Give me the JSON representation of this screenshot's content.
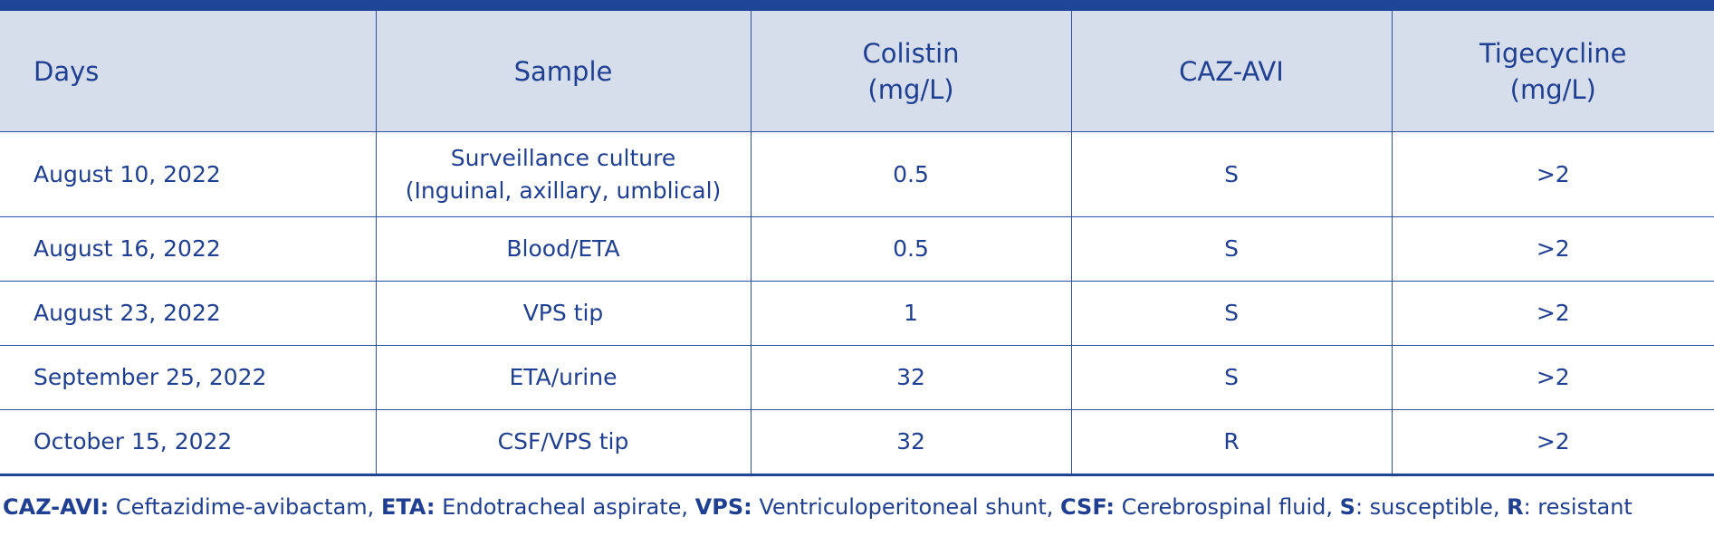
{
  "table": {
    "headers": [
      "Days",
      "Sample",
      [
        "Colistin",
        "(mg/L)"
      ],
      "CAZ-AVI",
      [
        "Tigecycline",
        "(mg/L)"
      ]
    ],
    "rows": [
      [
        "August 10, 2022",
        [
          "Surveillance culture",
          "(Inguinal, axillary, umblical)"
        ],
        "0.5",
        "S",
        ">2"
      ],
      [
        "August 16, 2022",
        "Blood/ETA",
        "0.5",
        "S",
        ">2"
      ],
      [
        "August 23, 2022",
        "VPS tip",
        "1",
        "S",
        ">2"
      ],
      [
        "September 25, 2022",
        "ETA/urine",
        "32",
        "S",
        ">2"
      ],
      [
        "October 15, 2022",
        "CSF/VPS tip",
        "32",
        "R",
        ">2"
      ]
    ]
  },
  "footnote": [
    {
      "abbr": "CAZ-AVI:",
      "text": " Ceftazidime-avibactam, "
    },
    {
      "abbr": "ETA:",
      "text": " Endotracheal aspirate, "
    },
    {
      "abbr": "VPS:",
      "text": " Ventriculoperitoneal shunt, "
    },
    {
      "abbr": "CSF:",
      "text": " Cerebrospinal fluid, "
    },
    {
      "abbr": "S",
      "text": ": susceptible, "
    },
    {
      "abbr": "R",
      "text": ": resistant"
    }
  ]
}
